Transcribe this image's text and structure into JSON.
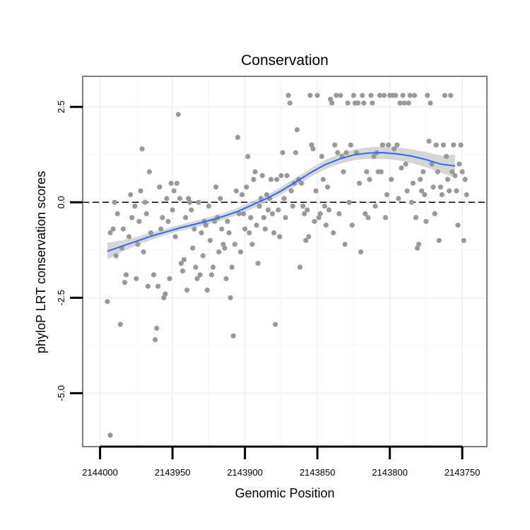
{
  "chart_data": {
    "type": "scatter",
    "title": "Conservation",
    "xlabel": "Genomic Position",
    "ylabel": "phyloP LRT conservation scores",
    "x_reversed": true,
    "xlim": [
      2144012,
      2143733
    ],
    "ylim": [
      -6.4,
      3.3
    ],
    "x_ticks": [
      2144000,
      2143950,
      2143900,
      2143850,
      2143800,
      2143750
    ],
    "x_tick_labels": [
      "2144000",
      "2143950",
      "2143900",
      "2143850",
      "2143800",
      "2143750"
    ],
    "y_ticks": [
      -5.0,
      -2.5,
      0.0,
      2.5
    ],
    "y_tick_labels": [
      "-5.0",
      "-2.5",
      "0.0",
      "2.5"
    ],
    "reference_line": {
      "y": 0,
      "style": "dashed"
    },
    "grid": true,
    "point_color": "#999999",
    "smooth_color": "#3366FF",
    "ribbon_color": "#cccccc",
    "points": [
      [
        2143993,
        -6.1
      ],
      [
        2143995,
        -2.6
      ],
      [
        2143993,
        -0.8
      ],
      [
        2143991,
        -0.7
      ],
      [
        2143990,
        0.0
      ],
      [
        2143989,
        -1.4
      ],
      [
        2143988,
        -0.3
      ],
      [
        2143986,
        -3.2
      ],
      [
        2143985,
        -1.2
      ],
      [
        2143984,
        -0.7
      ],
      [
        2143983,
        -2.1
      ],
      [
        2143982,
        -1.9
      ],
      [
        2143980,
        -0.9
      ],
      [
        2143979,
        0.2
      ],
      [
        2143978,
        -0.4
      ],
      [
        2143976,
        -0.1
      ],
      [
        2143975,
        -2.0
      ],
      [
        2143974,
        -1.1
      ],
      [
        2143973,
        -0.5
      ],
      [
        2143972,
        0.3
      ],
      [
        2143971,
        1.4
      ],
      [
        2143970,
        -1.3
      ],
      [
        2143969,
        0.0
      ],
      [
        2143968,
        -0.3
      ],
      [
        2143967,
        -2.2
      ],
      [
        2143966,
        0.8
      ],
      [
        2143965,
        -0.8
      ],
      [
        2143963,
        -1.9
      ],
      [
        2143962,
        -3.6
      ],
      [
        2143961,
        -3.3
      ],
      [
        2143960,
        -2.2
      ],
      [
        2143959,
        0.4
      ],
      [
        2143958,
        -0.7
      ],
      [
        2143957,
        -0.4
      ],
      [
        2143956,
        -2.5
      ],
      [
        2143955,
        -2.4
      ],
      [
        2143954,
        0.1
      ],
      [
        2143953,
        -0.5
      ],
      [
        2143952,
        -2.0
      ],
      [
        2143951,
        0.5
      ],
      [
        2143950,
        -0.2
      ],
      [
        2143949,
        0.3
      ],
      [
        2143948,
        -0.9
      ],
      [
        2143947,
        0.5
      ],
      [
        2143946,
        2.3
      ],
      [
        2143945,
        0.1
      ],
      [
        2143944,
        -1.6
      ],
      [
        2143943,
        -1.8
      ],
      [
        2143942,
        -1.5
      ],
      [
        2143941,
        -0.4
      ],
      [
        2143940,
        -2.3
      ],
      [
        2143939,
        0.1
      ],
      [
        2143938,
        0.0
      ],
      [
        2143937,
        -0.2
      ],
      [
        2143936,
        -1.2
      ],
      [
        2143935,
        -0.7
      ],
      [
        2143934,
        -1.7
      ],
      [
        2143933,
        -2.0
      ],
      [
        2143932,
        0.0
      ],
      [
        2143931,
        -1.9
      ],
      [
        2143930,
        -0.8
      ],
      [
        2143929,
        -1.4
      ],
      [
        2143928,
        -0.5
      ],
      [
        2143927,
        -0.6
      ],
      [
        2143926,
        -2.3
      ],
      [
        2143925,
        -0.1
      ],
      [
        2143924,
        -1.0
      ],
      [
        2143923,
        -1.9
      ],
      [
        2143922,
        -1.7
      ],
      [
        2143921,
        -0.5
      ],
      [
        2143920,
        0.4
      ],
      [
        2143919,
        -0.4
      ],
      [
        2143918,
        -1.3
      ],
      [
        2143917,
        0.1
      ],
      [
        2143916,
        -0.7
      ],
      [
        2143915,
        -1.1
      ],
      [
        2143914,
        -1.2
      ],
      [
        2143913,
        -2.0
      ],
      [
        2143912,
        -0.5
      ],
      [
        2143911,
        -0.8
      ],
      [
        2143910,
        -2.5
      ],
      [
        2143909,
        -1.7
      ],
      [
        2143908,
        -3.5
      ],
      [
        2143907,
        -1.1
      ],
      [
        2143906,
        0.3
      ],
      [
        2143905,
        1.7
      ],
      [
        2143904,
        -0.3
      ],
      [
        2143903,
        -1.3
      ],
      [
        2143902,
        0.2
      ],
      [
        2143901,
        -0.3
      ],
      [
        2143900,
        -0.7
      ],
      [
        2143899,
        0.4
      ],
      [
        2143898,
        1.2
      ],
      [
        2143897,
        -0.8
      ],
      [
        2143896,
        -0.4
      ],
      [
        2143895,
        -1.1
      ],
      [
        2143894,
        0.6
      ],
      [
        2143893,
        0.8
      ],
      [
        2143892,
        -0.6
      ],
      [
        2143891,
        -1.6
      ],
      [
        2143890,
        -0.1
      ],
      [
        2143889,
        0.1
      ],
      [
        2143888,
        0.7
      ],
      [
        2143887,
        -0.4
      ],
      [
        2143886,
        -0.7
      ],
      [
        2143885,
        0.2
      ],
      [
        2143884,
        -0.2
      ],
      [
        2143883,
        0.1
      ],
      [
        2143882,
        0.6
      ],
      [
        2143881,
        -0.3
      ],
      [
        2143880,
        -0.8
      ],
      [
        2143879,
        -3.2
      ],
      [
        2143878,
        0.6
      ],
      [
        2143877,
        -0.2
      ],
      [
        2143876,
        -0.9
      ],
      [
        2143875,
        0.7
      ],
      [
        2143874,
        1.3
      ],
      [
        2143873,
        0.1
      ],
      [
        2143872,
        -0.4
      ],
      [
        2143871,
        0.7
      ],
      [
        2143870,
        2.8
      ],
      [
        2143869,
        2.6
      ],
      [
        2143868,
        0.3
      ],
      [
        2143867,
        -0.1
      ],
      [
        2143866,
        0.5
      ],
      [
        2143865,
        1.3
      ],
      [
        2143864,
        1.9
      ],
      [
        2143863,
        0.6
      ],
      [
        2143862,
        -1.7
      ],
      [
        2143861,
        0.5
      ],
      [
        2143860,
        -0.1
      ],
      [
        2143859,
        -0.3
      ],
      [
        2143858,
        -1.0
      ],
      [
        2143857,
        -0.2
      ],
      [
        2143856,
        -0.9
      ],
      [
        2143855,
        2.8
      ],
      [
        2143854,
        1.5
      ],
      [
        2143853,
        1.4
      ],
      [
        2143852,
        -0.5
      ],
      [
        2143851,
        0.3
      ],
      [
        2143850,
        2.8
      ],
      [
        2143849,
        -0.4
      ],
      [
        2143848,
        -0.3
      ],
      [
        2143847,
        1.2
      ],
      [
        2143846,
        0.6
      ],
      [
        2143845,
        -0.1
      ],
      [
        2143844,
        -0.6
      ],
      [
        2143843,
        0.4
      ],
      [
        2143842,
        -0.2
      ],
      [
        2143841,
        2.7
      ],
      [
        2143840,
        2.6
      ],
      [
        2143839,
        -0.8
      ],
      [
        2143838,
        1.5
      ],
      [
        2143837,
        2.8
      ],
      [
        2143836,
        1.3
      ],
      [
        2143835,
        -0.3
      ],
      [
        2143834,
        2.8
      ],
      [
        2143833,
        1.2
      ],
      [
        2143832,
        0.8
      ],
      [
        2143831,
        -1.1
      ],
      [
        2143830,
        1.3
      ],
      [
        2143829,
        2.6
      ],
      [
        2143828,
        0.0
      ],
      [
        2143827,
        1.5
      ],
      [
        2143826,
        -0.6
      ],
      [
        2143825,
        2.8
      ],
      [
        2143824,
        2.6
      ],
      [
        2143823,
        1.3
      ],
      [
        2143822,
        2.6
      ],
      [
        2143821,
        0.5
      ],
      [
        2143820,
        -1.3
      ],
      [
        2143819,
        2.8
      ],
      [
        2143818,
        2.6
      ],
      [
        2143817,
        -0.3
      ],
      [
        2143816,
        0.8
      ],
      [
        2143815,
        -0.4
      ],
      [
        2143814,
        0.6
      ],
      [
        2143813,
        2.8
      ],
      [
        2143812,
        2.6
      ],
      [
        2143811,
        1.2
      ],
      [
        2143810,
        -0.1
      ],
      [
        2143809,
        1.3
      ],
      [
        2143808,
        0.8
      ],
      [
        2143807,
        2.8
      ],
      [
        2143806,
        0.8
      ],
      [
        2143805,
        1.5
      ],
      [
        2143804,
        2.8
      ],
      [
        2143803,
        -0.4
      ],
      [
        2143802,
        0.2
      ],
      [
        2143801,
        1.5
      ],
      [
        2143800,
        2.8
      ],
      [
        2143799,
        0.6
      ],
      [
        2143798,
        2.8
      ],
      [
        2143797,
        1.4
      ],
      [
        2143796,
        2.8
      ],
      [
        2143795,
        1.5
      ],
      [
        2143794,
        0.1
      ],
      [
        2143793,
        2.6
      ],
      [
        2143792,
        0.9
      ],
      [
        2143791,
        2.8
      ],
      [
        2143790,
        2.6
      ],
      [
        2143789,
        1.0
      ],
      [
        2143788,
        0.3
      ],
      [
        2143787,
        2.6
      ],
      [
        2143786,
        2.8
      ],
      [
        2143785,
        0.0
      ],
      [
        2143784,
        0.5
      ],
      [
        2143783,
        2.8
      ],
      [
        2143782,
        -0.4
      ],
      [
        2143781,
        -1.2
      ],
      [
        2143780,
        -1.1
      ],
      [
        2143779,
        0.6
      ],
      [
        2143778,
        0.3
      ],
      [
        2143777,
        0.8
      ],
      [
        2143776,
        0.2
      ],
      [
        2143775,
        -0.5
      ],
      [
        2143774,
        2.8
      ],
      [
        2143773,
        1.6
      ],
      [
        2143772,
        2.6
      ],
      [
        2143771,
        1.0
      ],
      [
        2143770,
        0.4
      ],
      [
        2143769,
        -0.3
      ],
      [
        2143768,
        1.5
      ],
      [
        2143767,
        0.8
      ],
      [
        2143766,
        -1.0
      ],
      [
        2143765,
        0.4
      ],
      [
        2143764,
        0.2
      ],
      [
        2143763,
        1.5
      ],
      [
        2143762,
        2.8
      ],
      [
        2143761,
        1.2
      ],
      [
        2143760,
        0.6
      ],
      [
        2143759,
        0.3
      ],
      [
        2143758,
        2.8
      ],
      [
        2143757,
        0.8
      ],
      [
        2143756,
        1.5
      ],
      [
        2143755,
        0.7
      ],
      [
        2143754,
        0.3
      ],
      [
        2143753,
        -0.6
      ],
      [
        2143752,
        1.0
      ],
      [
        2143751,
        1.5
      ],
      [
        2143750,
        0.8
      ],
      [
        2143749,
        -1.0
      ],
      [
        2143748,
        0.6
      ],
      [
        2143747,
        0.2
      ]
    ],
    "smooth_line": [
      [
        2143995,
        -1.28
      ],
      [
        2143985,
        -1.15
      ],
      [
        2143975,
        -1.02
      ],
      [
        2143965,
        -0.89
      ],
      [
        2143955,
        -0.78
      ],
      [
        2143945,
        -0.67
      ],
      [
        2143935,
        -0.58
      ],
      [
        2143925,
        -0.48
      ],
      [
        2143915,
        -0.37
      ],
      [
        2143905,
        -0.24
      ],
      [
        2143895,
        -0.07
      ],
      [
        2143885,
        0.1
      ],
      [
        2143875,
        0.3
      ],
      [
        2143865,
        0.53
      ],
      [
        2143855,
        0.77
      ],
      [
        2143845,
        0.98
      ],
      [
        2143835,
        1.13
      ],
      [
        2143825,
        1.24
      ],
      [
        2143815,
        1.29
      ],
      [
        2143805,
        1.3
      ],
      [
        2143795,
        1.27
      ],
      [
        2143785,
        1.21
      ],
      [
        2143775,
        1.12
      ],
      [
        2143765,
        1.0
      ],
      [
        2143755,
        0.95
      ]
    ],
    "ribbon_lower": [
      [
        2143995,
        -1.5
      ],
      [
        2143985,
        -1.3
      ],
      [
        2143975,
        -1.13
      ],
      [
        2143965,
        -0.99
      ],
      [
        2143955,
        -0.86
      ],
      [
        2143945,
        -0.75
      ],
      [
        2143935,
        -0.66
      ],
      [
        2143925,
        -0.57
      ],
      [
        2143915,
        -0.46
      ],
      [
        2143905,
        -0.33
      ],
      [
        2143895,
        -0.17
      ],
      [
        2143885,
        0.01
      ],
      [
        2143875,
        0.2
      ],
      [
        2143865,
        0.42
      ],
      [
        2143855,
        0.66
      ],
      [
        2143845,
        0.86
      ],
      [
        2143835,
        1.0
      ],
      [
        2143825,
        1.1
      ],
      [
        2143815,
        1.14
      ],
      [
        2143805,
        1.14
      ],
      [
        2143795,
        1.1
      ],
      [
        2143785,
        1.03
      ],
      [
        2143775,
        0.92
      ],
      [
        2143765,
        0.78
      ],
      [
        2143755,
        0.65
      ]
    ],
    "ribbon_upper": [
      [
        2143995,
        -1.06
      ],
      [
        2143985,
        -1.0
      ],
      [
        2143975,
        -0.91
      ],
      [
        2143965,
        -0.79
      ],
      [
        2143955,
        -0.7
      ],
      [
        2143945,
        -0.59
      ],
      [
        2143935,
        -0.5
      ],
      [
        2143925,
        -0.39
      ],
      [
        2143915,
        -0.28
      ],
      [
        2143905,
        -0.15
      ],
      [
        2143895,
        0.03
      ],
      [
        2143885,
        0.19
      ],
      [
        2143875,
        0.4
      ],
      [
        2143865,
        0.64
      ],
      [
        2143855,
        0.88
      ],
      [
        2143845,
        1.1
      ],
      [
        2143835,
        1.26
      ],
      [
        2143825,
        1.38
      ],
      [
        2143815,
        1.44
      ],
      [
        2143805,
        1.46
      ],
      [
        2143795,
        1.44
      ],
      [
        2143785,
        1.39
      ],
      [
        2143775,
        1.32
      ],
      [
        2143765,
        1.22
      ],
      [
        2143755,
        1.25
      ]
    ]
  }
}
